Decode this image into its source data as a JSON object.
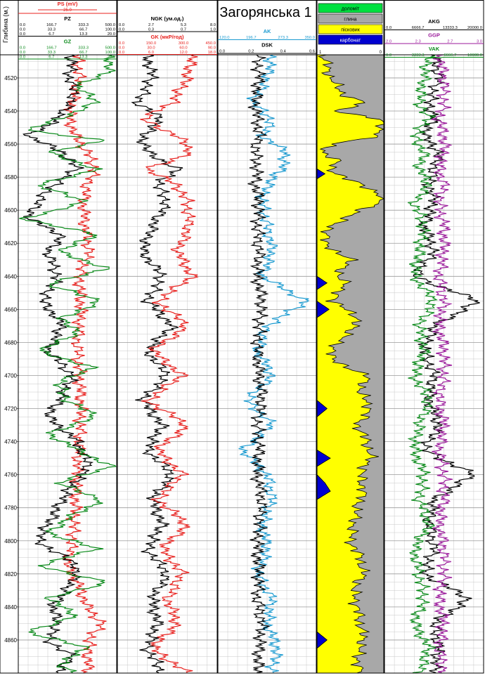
{
  "title": "Загорянська 1",
  "depth_axis": {
    "label": "Глибина (м.)",
    "range": [
      4506,
      4880
    ],
    "major_step": 20,
    "minor_step": 5,
    "ticks": [
      4520,
      4540,
      4560,
      4580,
      4600,
      4620,
      4640,
      4660,
      4680,
      4700,
      4720,
      4740,
      4760,
      4780,
      4800,
      4820,
      4840,
      4860
    ]
  },
  "colors": {
    "black": "#000000",
    "red": "#e8211e",
    "green": "#0a8a1a",
    "blue": "#1a9ad0",
    "purple": "#9b1a9b",
    "yellow": "#ffff00",
    "gray": "#a8a8a8",
    "carbonate": "#0000d0",
    "dolomite": "#00e040",
    "grid": "#c8c8c8"
  },
  "track1": {
    "header": [
      {
        "name": "PS (mV)",
        "color": "#e8211e",
        "sub": "25.0",
        "ticks": []
      },
      {
        "name": "PZ",
        "color": "#000000",
        "ticks": [
          [
            "0.0",
            "166.7",
            "333.3",
            "500.0"
          ],
          [
            "0.0",
            "33.3",
            "66.7",
            "100.0"
          ],
          [
            "0.0",
            "6.7",
            "13.3",
            "20.0"
          ]
        ]
      },
      {
        "name": "GZ",
        "color": "#0a8a1a",
        "ticks": [
          [
            "0.0",
            "166.7",
            "333.3",
            "500.0"
          ],
          [
            "0.0",
            "33.3",
            "66.7",
            "100.0"
          ],
          [
            "0.0",
            "6.7",
            "13.3",
            "20.0"
          ]
        ]
      }
    ]
  },
  "track2": {
    "header": [
      {
        "name": "NGK (ум.од.)",
        "color": "#000000",
        "ticks": [
          [
            "0.0",
            "2.7",
            "5.3",
            "8.0"
          ],
          [
            "0.0",
            "0.3",
            "0.7",
            "1.0"
          ]
        ]
      },
      {
        "name": "GK (мкР/год)",
        "color": "#e8211e",
        "ticks": [
          [
            "0.0",
            "150.0",
            "300.0",
            "450.0"
          ],
          [
            "0.0",
            "30.0",
            "60.0",
            "90.0"
          ],
          [
            "0.0",
            "6.0",
            "12.0",
            "18.0"
          ]
        ]
      }
    ]
  },
  "track3": {
    "header": [
      {
        "name": "AK",
        "color": "#1a9ad0",
        "ticks": [
          [
            "120.0",
            "196.7",
            "273.3",
            "350.0"
          ]
        ]
      },
      {
        "name": "DSK",
        "color": "#000000",
        "ticks": [
          [
            "0.0",
            "0.2",
            "0.4",
            "0.6"
          ]
        ]
      }
    ]
  },
  "lithology": {
    "legend": [
      {
        "label": "доломіт",
        "color": "#00e040"
      },
      {
        "label": "глина",
        "color": "#a8a8a8"
      },
      {
        "label": "пісковик",
        "color": "#ffff00"
      },
      {
        "label": "карбонат",
        "color": "#0000d0"
      }
    ],
    "scale_ticks": [
      "1",
      "0"
    ]
  },
  "track5": {
    "header": [
      {
        "name": "AKG",
        "color": "#000000",
        "ticks": [
          [
            "0.0",
            "6666.7",
            "13333.3",
            "20000.0"
          ]
        ]
      },
      {
        "name": "GGP",
        "color": "#9b1a9b",
        "ticks": [
          [
            "2.0",
            "2.3",
            "2.7",
            "3.0"
          ]
        ]
      },
      {
        "name": "VAK",
        "color": "#0a8a1a",
        "ticks": [
          [
            "0.0",
            "3333.3",
            "6666.7",
            "10000.0"
          ]
        ]
      }
    ]
  },
  "chart_data": [
    {
      "type": "line",
      "track": "track1",
      "series": [
        {
          "name": "PS (mV)",
          "color": "#e8211e",
          "x_range": [
            0,
            1
          ],
          "depth": [
            4506,
            4520,
            4535,
            4545,
            4555,
            4565,
            4575,
            4585,
            4595,
            4610,
            4625,
            4640,
            4660,
            4680,
            4700,
            4720,
            4740,
            4760,
            4780,
            4800,
            4815,
            4825,
            4840,
            4850,
            4860,
            4880
          ],
          "values": [
            0.6,
            0.62,
            0.55,
            0.52,
            0.58,
            0.7,
            0.78,
            0.7,
            0.66,
            0.68,
            0.72,
            0.62,
            0.64,
            0.6,
            0.62,
            0.64,
            0.62,
            0.6,
            0.58,
            0.55,
            0.5,
            0.6,
            0.7,
            0.85,
            0.72,
            0.7
          ]
        },
        {
          "name": "PZ",
          "color": "#000000",
          "x_range": [
            0,
            1
          ],
          "depth": [
            4506,
            4520,
            4530,
            4545,
            4555,
            4565,
            4575,
            4585,
            4595,
            4605,
            4615,
            4625,
            4640,
            4655,
            4670,
            4685,
            4700,
            4715,
            4725,
            4740,
            4755,
            4770,
            4785,
            4800,
            4815,
            4825,
            4840,
            4850,
            4860,
            4870,
            4880
          ],
          "values": [
            0.55,
            0.52,
            0.58,
            0.4,
            0.1,
            0.45,
            0.6,
            0.35,
            0.2,
            0.1,
            0.45,
            0.3,
            0.4,
            0.25,
            0.45,
            0.3,
            0.55,
            0.42,
            0.3,
            0.6,
            0.72,
            0.5,
            0.35,
            0.2,
            0.6,
            0.55,
            0.35,
            0.4,
            0.3,
            0.55,
            0.4
          ]
        },
        {
          "name": "GZ",
          "color": "#0a8a1a",
          "x_range": [
            0,
            1
          ],
          "depth": [
            4506,
            4515,
            4525,
            4535,
            4545,
            4552,
            4558,
            4565,
            4575,
            4585,
            4595,
            4605,
            4615,
            4625,
            4635,
            4645,
            4655,
            4665,
            4675,
            4685,
            4695,
            4705,
            4715,
            4725,
            4735,
            4745,
            4755,
            4765,
            4775,
            4785,
            4795,
            4805,
            4815,
            4825,
            4835,
            4845,
            4855,
            4865,
            4875,
            4880
          ],
          "values": [
            0.9,
            0.95,
            0.6,
            0.8,
            0.4,
            0.1,
            0.9,
            0.3,
            0.8,
            0.2,
            0.7,
            0.05,
            0.8,
            0.4,
            0.9,
            0.3,
            0.85,
            0.45,
            0.6,
            0.2,
            0.75,
            0.4,
            0.5,
            0.8,
            0.3,
            0.6,
            0.95,
            0.4,
            0.85,
            0.55,
            0.3,
            0.8,
            0.2,
            0.9,
            0.3,
            0.6,
            0.1,
            0.7,
            0.4,
            0.6
          ]
        }
      ]
    },
    {
      "type": "line",
      "track": "track2",
      "series": [
        {
          "name": "NGK (ум.од.)",
          "color": "#000000",
          "x_range": [
            0,
            1
          ],
          "depth": [
            4506,
            4520,
            4535,
            4545,
            4555,
            4565,
            4575,
            4585,
            4595,
            4610,
            4625,
            4640,
            4655,
            4670,
            4685,
            4700,
            4715,
            4730,
            4745,
            4760,
            4775,
            4790,
            4805,
            4820,
            4835,
            4850,
            4865,
            4880
          ],
          "values": [
            0.3,
            0.35,
            0.2,
            0.45,
            0.25,
            0.3,
            0.6,
            0.4,
            0.5,
            0.35,
            0.25,
            0.45,
            0.3,
            0.55,
            0.3,
            0.5,
            0.25,
            0.45,
            0.3,
            0.55,
            0.35,
            0.45,
            0.3,
            0.5,
            0.35,
            0.4,
            0.3,
            0.45
          ]
        },
        {
          "name": "GK (мкР/год)",
          "color": "#e8211e",
          "x_range": [
            0,
            1
          ],
          "depth": [
            4506,
            4520,
            4535,
            4545,
            4555,
            4565,
            4575,
            4585,
            4595,
            4610,
            4625,
            4640,
            4655,
            4670,
            4685,
            4700,
            4715,
            4730,
            4745,
            4760,
            4775,
            4790,
            4805,
            4820,
            4835,
            4850,
            4865,
            4880
          ],
          "values": [
            0.75,
            0.7,
            0.55,
            0.25,
            0.6,
            0.75,
            0.3,
            0.6,
            0.7,
            0.72,
            0.6,
            0.75,
            0.4,
            0.7,
            0.35,
            0.65,
            0.3,
            0.7,
            0.4,
            0.65,
            0.4,
            0.7,
            0.45,
            0.65,
            0.5,
            0.6,
            0.35,
            0.7
          ]
        }
      ]
    },
    {
      "type": "line",
      "track": "track3",
      "series": [
        {
          "name": "AK",
          "color": "#1a9ad0",
          "x_range": [
            0,
            1
          ],
          "depth": [
            4506,
            4520,
            4535,
            4545,
            4555,
            4565,
            4575,
            4585,
            4595,
            4610,
            4625,
            4640,
            4655,
            4670,
            4685,
            4700,
            4715,
            4730,
            4745,
            4760,
            4775,
            4790,
            4805,
            4820,
            4835,
            4850,
            4865,
            4880
          ],
          "values": [
            0.55,
            0.5,
            0.35,
            0.55,
            0.45,
            0.7,
            0.65,
            0.5,
            0.45,
            0.5,
            0.55,
            0.45,
            0.9,
            0.5,
            0.4,
            0.55,
            0.3,
            0.55,
            0.25,
            0.5,
            0.55,
            0.45,
            0.5,
            0.4,
            0.55,
            0.5,
            0.6,
            0.55
          ]
        },
        {
          "name": "DSK",
          "color": "#000000",
          "x_range": [
            0,
            1
          ],
          "depth": [
            4506,
            4520,
            4535,
            4545,
            4555,
            4565,
            4575,
            4585,
            4595,
            4610,
            4625,
            4640,
            4655,
            4670,
            4685,
            4700,
            4715,
            4730,
            4745,
            4760,
            4775,
            4790,
            4805,
            4820,
            4835,
            4850,
            4865,
            4880
          ],
          "values": [
            0.4,
            0.42,
            0.38,
            0.4,
            0.42,
            0.38,
            0.4,
            0.38,
            0.42,
            0.4,
            0.42,
            0.4,
            0.45,
            0.42,
            0.4,
            0.42,
            0.45,
            0.4,
            0.42,
            0.4,
            0.45,
            0.42,
            0.4,
            0.42,
            0.4,
            0.45,
            0.42,
            0.4
          ]
        }
      ]
    },
    {
      "type": "area",
      "track": "lithology",
      "series": [
        {
          "name": "карбонат",
          "color": "#0000d0",
          "x_range": [
            0,
            1
          ],
          "depth": [
            4506,
            4575,
            4578,
            4581,
            4640,
            4644,
            4648,
            4655,
            4660,
            4665,
            4715,
            4720,
            4725,
            4745,
            4750,
            4755,
            4760,
            4765,
            4770,
            4775,
            4800,
            4855,
            4860,
            4865,
            4880
          ],
          "values": [
            0.0,
            0.0,
            0.12,
            0.0,
            0.0,
            0.15,
            0.0,
            0.0,
            0.18,
            0.0,
            0.0,
            0.15,
            0.0,
            0.0,
            0.2,
            0.0,
            0.0,
            0.12,
            0.2,
            0.0,
            0.0,
            0.0,
            0.15,
            0.0,
            0.0
          ]
        },
        {
          "name": "пісковик",
          "color": "#ffff00",
          "x_range": [
            0,
            1
          ],
          "depth": [
            4506,
            4520,
            4530,
            4535,
            4540,
            4545,
            4550,
            4555,
            4560,
            4565,
            4570,
            4575,
            4580,
            4590,
            4595,
            4605,
            4610,
            4620,
            4630,
            4640,
            4645,
            4655,
            4660,
            4670,
            4680,
            4690,
            4700,
            4710,
            4720,
            4730,
            4740,
            4750,
            4760,
            4770,
            4780,
            4790,
            4800,
            4810,
            4820,
            4830,
            4840,
            4850,
            4860,
            4870,
            4880
          ],
          "values": [
            0.1,
            0.2,
            0.4,
            0.7,
            0.3,
            0.95,
            0.95,
            0.95,
            0.2,
            0.1,
            0.3,
            0.2,
            0.4,
            0.95,
            0.95,
            0.4,
            0.2,
            0.1,
            0.5,
            0.3,
            0.45,
            0.2,
            0.5,
            0.6,
            0.3,
            0.2,
            0.75,
            0.65,
            0.8,
            0.6,
            0.75,
            0.8,
            0.65,
            0.7,
            0.6,
            0.55,
            0.5,
            0.65,
            0.7,
            0.55,
            0.6,
            0.65,
            0.7,
            0.6,
            0.65
          ]
        }
      ]
    },
    {
      "type": "line",
      "track": "track5",
      "series": [
        {
          "name": "AKG",
          "color": "#000000",
          "x_range": [
            0,
            1
          ],
          "depth": [
            4506,
            4520,
            4535,
            4545,
            4555,
            4565,
            4575,
            4585,
            4595,
            4610,
            4625,
            4640,
            4655,
            4670,
            4685,
            4700,
            4715,
            4730,
            4745,
            4760,
            4775,
            4790,
            4805,
            4820,
            4835,
            4850,
            4865,
            4880
          ],
          "values": [
            0.5,
            0.55,
            0.45,
            0.5,
            0.4,
            0.55,
            0.5,
            0.45,
            0.5,
            0.4,
            0.5,
            0.3,
            0.95,
            0.5,
            0.4,
            0.5,
            0.45,
            0.55,
            0.4,
            0.9,
            0.5,
            0.45,
            0.5,
            0.4,
            0.85,
            0.5,
            0.55,
            0.5
          ]
        },
        {
          "name": "GGP",
          "color": "#9b1a9b",
          "x_range": [
            0,
            1
          ],
          "depth": [
            4506,
            4520,
            4535,
            4545,
            4555,
            4565,
            4575,
            4585,
            4595,
            4610,
            4625,
            4640,
            4655,
            4670,
            4685,
            4700,
            4715,
            4730,
            4745,
            4760,
            4775,
            4790,
            4805,
            4820,
            4835,
            4850,
            4865,
            4880
          ],
          "values": [
            0.55,
            0.6,
            0.6,
            0.55,
            0.6,
            0.6,
            0.55,
            0.6,
            0.55,
            0.6,
            0.6,
            0.55,
            0.6,
            0.55,
            0.6,
            0.6,
            0.55,
            0.6,
            0.55,
            0.6,
            0.6,
            0.55,
            0.6,
            0.6,
            0.55,
            0.6,
            0.55,
            0.6
          ]
        },
        {
          "name": "VAK",
          "color": "#0a8a1a",
          "x_range": [
            0,
            1
          ],
          "depth": [
            4506,
            4520,
            4535,
            4545,
            4555,
            4565,
            4575,
            4585,
            4595,
            4610,
            4625,
            4640,
            4655,
            4670,
            4685,
            4700,
            4715,
            4730,
            4745,
            4760,
            4775,
            4790,
            4805,
            4820,
            4835,
            4850,
            4865,
            4880
          ],
          "values": [
            0.45,
            0.4,
            0.35,
            0.45,
            0.3,
            0.4,
            0.35,
            0.45,
            0.3,
            0.4,
            0.35,
            0.3,
            0.5,
            0.35,
            0.4,
            0.3,
            0.45,
            0.35,
            0.3,
            0.4,
            0.35,
            0.45,
            0.3,
            0.35,
            0.4,
            0.3,
            0.45,
            0.35
          ]
        }
      ]
    }
  ]
}
